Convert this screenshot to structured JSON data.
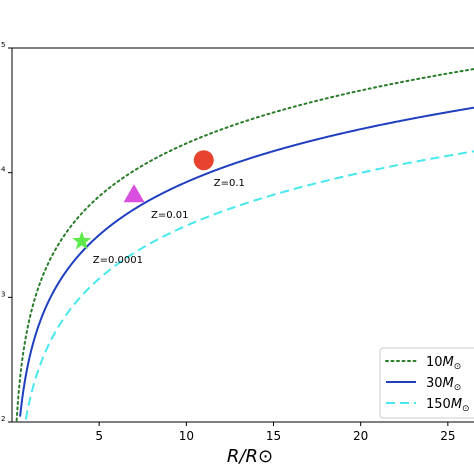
{
  "chart_data": {
    "type": "line",
    "xlabel": "R/R⊙",
    "ylabel": "",
    "xlim": [
      0,
      26.5
    ],
    "ylim_log": [
      2,
      5
    ],
    "x_ticks": [
      5,
      10,
      15,
      20,
      25
    ],
    "x_tick_labels": [
      "5",
      "10",
      "15",
      "20",
      "25"
    ],
    "y_ticks": [
      2,
      3,
      4,
      5
    ],
    "y_tick_labels": [
      "2",
      "3",
      "4",
      "5"
    ],
    "y_scale": "log",
    "grid": false,
    "legend_position": "lower-right",
    "series": [
      {
        "name": "10M⊙",
        "legend_base": "10",
        "legend_sub": "⊙",
        "style": "dotted",
        "color": "#2a7d2a",
        "offset": 3.81
      },
      {
        "name": "30M⊙",
        "legend_base": "30",
        "legend_sub": "⊙",
        "style": "solid",
        "color": "#1f3fbf",
        "offset": 3.5
      },
      {
        "name": "150M⊙",
        "legend_base": "150",
        "legend_sub": "⊙",
        "style": "dashed",
        "color": "#47e8ee",
        "offset": 3.15
      }
    ],
    "curve_slope": 1.41,
    "markers": [
      {
        "label": "Z=0.1",
        "x": 11,
        "y_log": 4.1,
        "shape": "circle",
        "color": "#e8432e"
      },
      {
        "label": "Z=0.01",
        "x": 7,
        "y_log": 3.82,
        "shape": "triangle",
        "color": "#d94fe0"
      },
      {
        "label": "Z=0.0001",
        "x": 4,
        "y_log": 3.45,
        "shape": "star",
        "color": "#5eea4a"
      }
    ]
  }
}
